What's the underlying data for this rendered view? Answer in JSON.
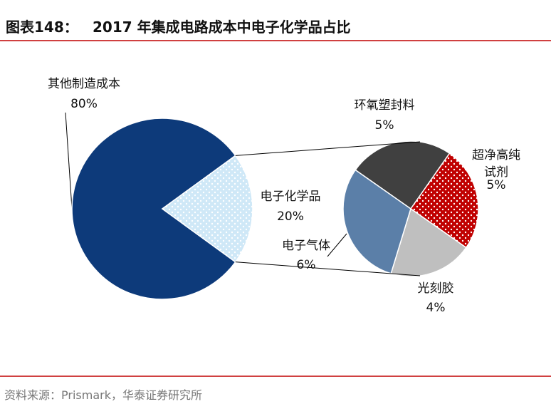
{
  "chart_data": {
    "type": "pie-of-pie",
    "figure_label": "图表148：",
    "title": "2017 年集成电路成本中电子化学品占比",
    "main": {
      "labels": [
        "其他制造成本",
        "电子化学品"
      ],
      "values": [
        80,
        20
      ],
      "value_labels": [
        "80%",
        "20%"
      ],
      "colors": [
        "#0d3a7a",
        "#cfe8f7"
      ]
    },
    "sub": {
      "labels": [
        "环氧塑封料",
        "超净高纯试剂",
        "光刻胶",
        "电子气体"
      ],
      "values": [
        5,
        5,
        4,
        6
      ],
      "value_labels": [
        "5%",
        "5%",
        "4%",
        "6%"
      ],
      "colors": [
        "#404040",
        "#c00000",
        "#bfbfbf",
        "#5b7fa8"
      ]
    },
    "source": "资料来源：Prismark，华泰证券研究所"
  }
}
